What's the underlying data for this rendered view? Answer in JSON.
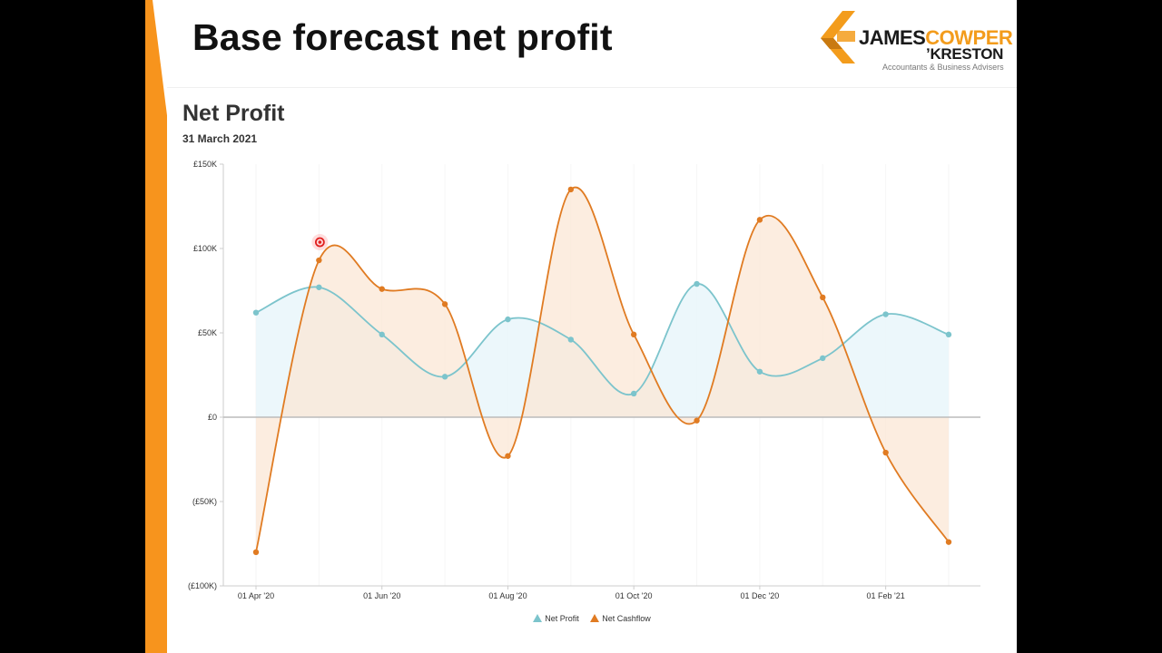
{
  "slide": {
    "title": "Base forecast net profit"
  },
  "logo": {
    "word_james": "JAMES",
    "word_cowper": "COWPER",
    "word_kreston": "KRESTON",
    "tagline": "Accountants & Business Advisers",
    "colors": {
      "orange": "#f39c1c",
      "dark": "#1a1a1a"
    }
  },
  "colors": {
    "accent_orange": "#f7941d",
    "net_profit": "#7cc4cc",
    "net_profit_fill": "#eaf6fb",
    "net_cashflow": "#e07b22",
    "net_cashflow_fill": "#fbe7d6",
    "zero_line": "#bbbbbb"
  },
  "chart_data": {
    "type": "line",
    "title": "Net Profit",
    "subtitle": "31 March 2021",
    "x": [
      "Apr '20",
      "May '20",
      "Jun '20",
      "Jul '20",
      "Aug '20",
      "Sep '20",
      "Oct '20",
      "Nov '20",
      "Dec '20",
      "Jan '21",
      "Feb '21",
      "Mar '21"
    ],
    "x_tick_labels": [
      "01 Apr '20",
      "01 Jun '20",
      "01 Aug '20",
      "01 Oct '20",
      "01 Dec '20",
      "01 Feb '21"
    ],
    "x_tick_index": [
      0,
      2,
      4,
      6,
      8,
      10
    ],
    "y_tick_values": [
      -100000,
      -50000,
      0,
      50000,
      100000,
      150000
    ],
    "y_tick_labels": [
      "(£100K)",
      "(£50K)",
      "£0",
      "£50K",
      "£100K",
      "£150K"
    ],
    "ylim": [
      -100000,
      150000
    ],
    "series": [
      {
        "name": "Net Profit",
        "values": [
          62000,
          77000,
          49000,
          24000,
          58000,
          46000,
          14000,
          79000,
          27000,
          35000,
          61000,
          49000
        ]
      },
      {
        "name": "Net Cashflow",
        "values": [
          -80000,
          93000,
          76000,
          67000,
          -23000,
          135000,
          49000,
          -2000,
          117000,
          71000,
          -21000,
          -74000
        ]
      }
    ],
    "area_fill": true,
    "legend_position": "bottom-center",
    "grid": false
  }
}
